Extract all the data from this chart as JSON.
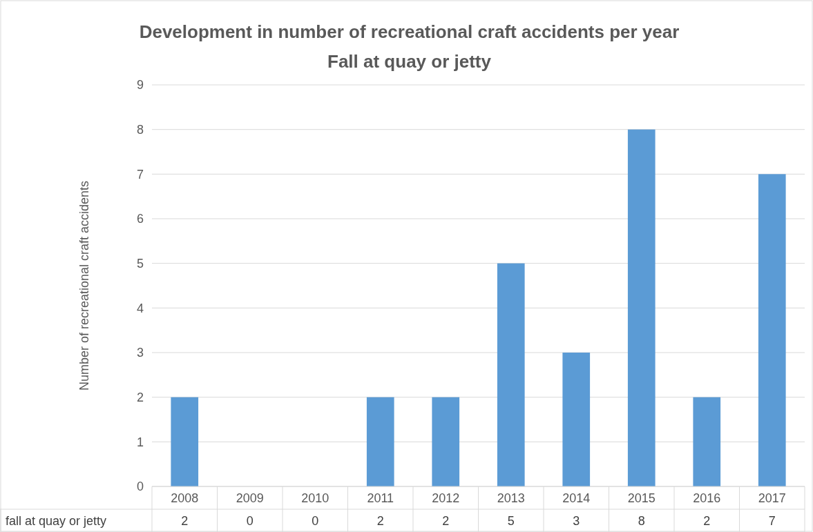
{
  "chart_data": {
    "type": "bar",
    "title": "Development in number of recreational craft accidents per year",
    "subtitle": "Fall at quay or jetty",
    "ylabel": "Number of recreational craft accidents",
    "categories": [
      "2008",
      "2009",
      "2010",
      "2011",
      "2012",
      "2013",
      "2014",
      "2015",
      "2016",
      "2017"
    ],
    "series": [
      {
        "name": "fall at quay or jetty",
        "color": "#5b9bd5",
        "values": [
          2,
          0,
          0,
          2,
          2,
          5,
          3,
          8,
          2,
          7
        ]
      }
    ],
    "ylim": [
      0,
      9
    ],
    "yticks": [
      0,
      1,
      2,
      3,
      4,
      5,
      6,
      7,
      8,
      9
    ],
    "grid": "y",
    "data_labels": true
  }
}
